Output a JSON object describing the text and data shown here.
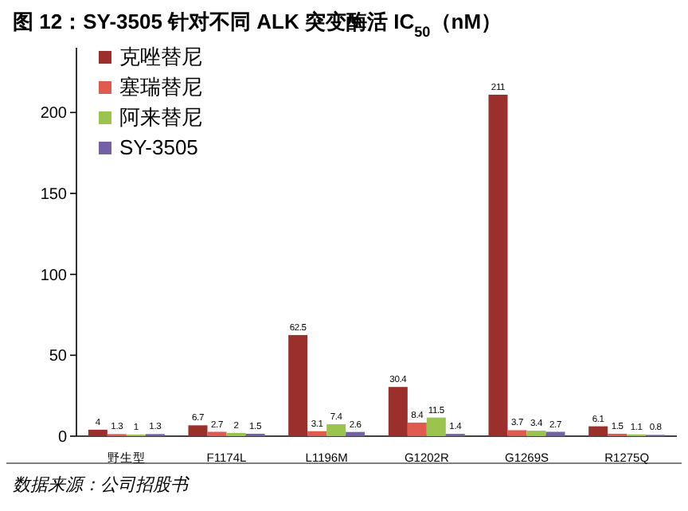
{
  "chart_data": {
    "type": "bar",
    "title": "图 12：SY-3505 针对不同 ALK 突变酶活 IC$_{50}$（nM）",
    "categories": [
      "野生型",
      "F1174L",
      "L1196M",
      "G1202R",
      "G1269S",
      "R1275Q"
    ],
    "series": [
      {
        "name": "克唑替尼",
        "color": "#9b2f2c",
        "values": [
          4,
          6.7,
          62.5,
          30.4,
          211,
          6.1
        ]
      },
      {
        "name": "塞瑞替尼",
        "color": "#e05a50",
        "values": [
          1.3,
          2.7,
          3.1,
          8.4,
          3.7,
          1.5
        ]
      },
      {
        "name": "阿来替尼",
        "color": "#9bc44f",
        "values": [
          1,
          2,
          7.4,
          11.5,
          3.4,
          1.1
        ]
      },
      {
        "name": "SY-3505",
        "color": "#7360a6",
        "values": [
          1.3,
          1.5,
          2.6,
          1.4,
          2.7,
          0.8
        ]
      }
    ],
    "ylim": [
      0,
      240
    ],
    "yticks": [
      0,
      50,
      100,
      150,
      200
    ],
    "data_labels": true,
    "legend": "top left",
    "annotations": [
      "数据来源：公司招股书"
    ]
  }
}
